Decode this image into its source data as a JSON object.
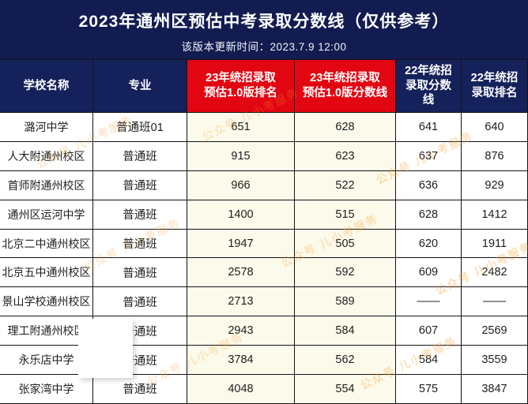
{
  "banner": {
    "title": "2023年通州区预估中考录取分数线（仅供参考）",
    "subtitle": "该版本更新时间：2023.7.9 12:00"
  },
  "table": {
    "columns": [
      {
        "label": "学校名称",
        "style": "navy",
        "lines": [
          "学校名称"
        ]
      },
      {
        "label": "专业",
        "style": "navy",
        "lines": [
          "专业"
        ]
      },
      {
        "label": "23年统招录取预估1.0版排名",
        "style": "red",
        "lines": [
          "23年统招录取",
          "预估1.0版排名"
        ]
      },
      {
        "label": "23年统招录取预估1.0版分数线",
        "style": "red",
        "lines": [
          "23年统招录取",
          "预估1.0版分数线"
        ]
      },
      {
        "label": "22年统招录取分数线",
        "style": "navy",
        "lines": [
          "22年统招",
          "录取分数",
          "线"
        ]
      },
      {
        "label": "22年统招录取排名",
        "style": "navy",
        "lines": [
          "22年统招",
          "录取排名"
        ]
      }
    ],
    "rows": [
      [
        "潞河中学",
        "普通班01",
        "651",
        "628",
        "641",
        "640"
      ],
      [
        "人大附通州校区",
        "普通班",
        "915",
        "623",
        "637",
        "876"
      ],
      [
        "首师附通州校区",
        "普通班",
        "966",
        "522",
        "636",
        "929"
      ],
      [
        "通州区运河中学",
        "普通班",
        "1400",
        "515",
        "628",
        "1412"
      ],
      [
        "北京二中通州校区",
        "普通班",
        "1947",
        "505",
        "620",
        "1911"
      ],
      [
        "北京五中通州校区",
        "普通班",
        "2578",
        "592",
        "609",
        "2482"
      ],
      [
        "景山学校通州校区",
        "普通班",
        "2713",
        "589",
        "——",
        "——"
      ],
      [
        "理工附通州校区",
        "普通班",
        "2943",
        "584",
        "607",
        "2569"
      ],
      [
        "永乐店中学",
        "普通班",
        "3784",
        "562",
        "584",
        "3559"
      ],
      [
        "张家湾中学",
        "普通班",
        "4048",
        "554",
        "575",
        "3847"
      ]
    ]
  },
  "watermark": {
    "text": "公众号 儿小考服务"
  },
  "colors": {
    "navy": "#121c50",
    "header_navy": "#15215a",
    "header_red": "#e20612",
    "cream": "#fcfaeb",
    "border": "#141414",
    "watermark": "#f59a23"
  },
  "chart_data": {
    "type": "table",
    "title": "2023年通州区预估中考录取分数线（仅供参考）",
    "subtitle": "该版本更新时间：2023.7.9 12:00",
    "columns": [
      "学校名称",
      "专业",
      "23年统招录取预估1.0版排名",
      "23年统招录取预估1.0版分数线",
      "22年统招录取分数线",
      "22年统招录取排名"
    ],
    "rows": [
      [
        "潞河中学",
        "普通班01",
        651,
        628,
        641,
        640
      ],
      [
        "人大附通州校区",
        "普通班",
        915,
        623,
        637,
        876
      ],
      [
        "首师附通州校区",
        "普通班",
        966,
        522,
        636,
        929
      ],
      [
        "通州区运河中学",
        "普通班",
        1400,
        515,
        628,
        1412
      ],
      [
        "北京二中通州校区",
        "普通班",
        1947,
        505,
        620,
        1911
      ],
      [
        "北京五中通州校区",
        "普通班",
        2578,
        592,
        609,
        2482
      ],
      [
        "景山学校通州校区",
        "普通班",
        2713,
        589,
        "——",
        "——"
      ],
      [
        "理工附通州校区",
        "普通班",
        2943,
        584,
        607,
        2569
      ],
      [
        "永乐店中学",
        "普通班",
        3784,
        562,
        584,
        3559
      ],
      [
        "张家湾中学",
        "普通班",
        4048,
        554,
        575,
        3847
      ]
    ],
    "layout_hints": {
      "header_colors": [
        "navy",
        "navy",
        "red",
        "red",
        "navy",
        "navy"
      ],
      "body_colors": [
        "white",
        "white",
        "cream",
        "cream",
        "white",
        "white"
      ]
    }
  }
}
